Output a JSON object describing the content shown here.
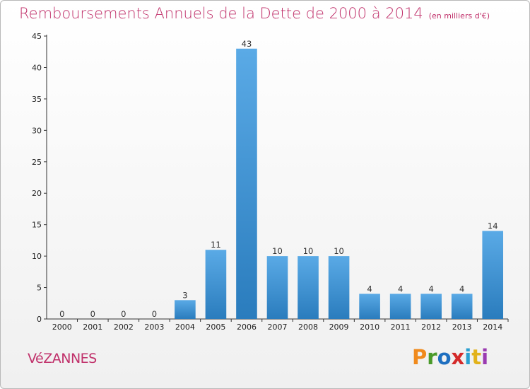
{
  "header": {
    "title": "Remboursements Annuels de la Dette de 2000 à 2014",
    "unit": "(en milliers d'€)"
  },
  "footer": {
    "commune": "VéZANNES",
    "logo": "Proxiti",
    "logo_colors": [
      "#f08a1c",
      "#4a9a2a",
      "#1e6fc0",
      "#d42a2a",
      "#2aa0d0",
      "#e2b21a",
      "#9a3ab0"
    ]
  },
  "colors": {
    "title": "#c0306a",
    "bar_top": "#5aaae6",
    "bar_bottom": "#2a7cbd",
    "axis": "#333333",
    "grid": "#cccccc"
  },
  "chart_data": {
    "type": "bar",
    "categories": [
      "2000",
      "2001",
      "2002",
      "2003",
      "2004",
      "2005",
      "2006",
      "2007",
      "2008",
      "2009",
      "2010",
      "2011",
      "2012",
      "2013",
      "2014"
    ],
    "values": [
      0,
      0,
      0,
      0,
      3,
      11,
      43,
      10,
      10,
      10,
      4,
      4,
      4,
      4,
      14
    ],
    "data_labels": [
      "0",
      "0",
      "0",
      "0",
      "3",
      "11",
      "43",
      "10",
      "10",
      "10",
      "4",
      "4",
      "4",
      "4",
      "14"
    ],
    "title": "Remboursements Annuels de la Dette de 2000 à 2014",
    "ylim": [
      0,
      45
    ],
    "yticks": [
      0,
      5,
      10,
      15,
      20,
      25,
      30,
      35,
      40,
      45
    ],
    "ytick_labels": [
      "0",
      "5",
      "10",
      "15",
      "20",
      "25",
      "30",
      "35",
      "40",
      "45"
    ],
    "grid": false
  }
}
